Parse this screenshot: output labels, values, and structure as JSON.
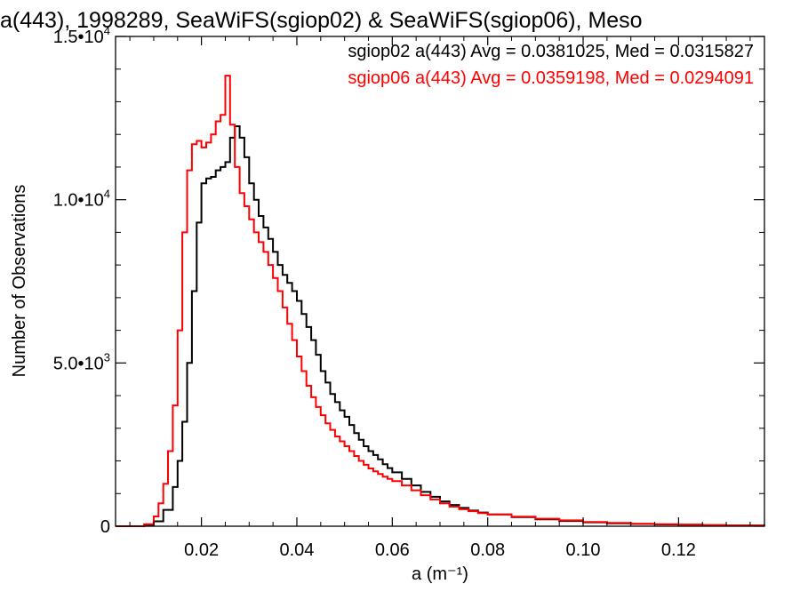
{
  "chart_data": {
    "type": "line",
    "title": "a(443), 1998289, SeaWiFS(sgiop02) & SeaWiFS(sgiop06), Meso",
    "xlabel": "a (m⁻¹)",
    "ylabel": "Number of Observations",
    "xlim": [
      0.002,
      0.138
    ],
    "ylim": [
      0,
      15000
    ],
    "x_ticks": [
      0.02,
      0.04,
      0.06,
      0.08,
      0.1,
      0.12
    ],
    "x_tick_labels": [
      "0.02",
      "0.04",
      "0.06",
      "0.08",
      "0.10",
      "0.12"
    ],
    "y_ticks": [
      0,
      5000,
      10000,
      15000
    ],
    "y_tick_labels": [
      {
        "mant": "0",
        "exp": ""
      },
      {
        "mant": "5.0•10",
        "exp": "3"
      },
      {
        "mant": "1.0•10",
        "exp": "4"
      },
      {
        "mant": "1.5•10",
        "exp": "4"
      }
    ],
    "legend_position": "top-right",
    "grid": false,
    "series": [
      {
        "name": "sgiop02 a(443) Avg = 0.0381025, Med = 0.0315827",
        "color": "#000000",
        "x": [
          0.002,
          0.005,
          0.008,
          0.01,
          0.012,
          0.014,
          0.015,
          0.016,
          0.017,
          0.018,
          0.019,
          0.02,
          0.021,
          0.022,
          0.023,
          0.024,
          0.025,
          0.026,
          0.027,
          0.028,
          0.029,
          0.03,
          0.031,
          0.032,
          0.033,
          0.034,
          0.035,
          0.036,
          0.037,
          0.038,
          0.039,
          0.04,
          0.041,
          0.042,
          0.043,
          0.044,
          0.045,
          0.046,
          0.047,
          0.048,
          0.049,
          0.05,
          0.051,
          0.052,
          0.053,
          0.054,
          0.055,
          0.056,
          0.057,
          0.058,
          0.059,
          0.06,
          0.062,
          0.064,
          0.066,
          0.068,
          0.07,
          0.072,
          0.074,
          0.076,
          0.078,
          0.08,
          0.085,
          0.09,
          0.095,
          0.1,
          0.105,
          0.11,
          0.115,
          0.12,
          0.125,
          0.13,
          0.138
        ],
        "y": [
          0,
          0,
          30,
          150,
          500,
          1200,
          2000,
          3200,
          5000,
          7200,
          9300,
          10500,
          10650,
          10700,
          10900,
          11000,
          11150,
          11900,
          12250,
          11900,
          11300,
          10500,
          10000,
          9500,
          9150,
          8800,
          8400,
          8000,
          7700,
          7450,
          7200,
          6900,
          6500,
          6100,
          5700,
          5250,
          4750,
          4400,
          4050,
          3800,
          3550,
          3350,
          3100,
          2850,
          2650,
          2450,
          2300,
          2180,
          2050,
          1900,
          1780,
          1650,
          1450,
          1250,
          1050,
          900,
          760,
          650,
          560,
          480,
          420,
          360,
          280,
          210,
          160,
          120,
          90,
          70,
          55,
          45,
          35,
          25,
          15
        ]
      },
      {
        "name": "sgiop06 a(443) Avg = 0.0359198, Med = 0.0294091",
        "color": "#ff0000",
        "x": [
          0.002,
          0.005,
          0.008,
          0.01,
          0.011,
          0.012,
          0.013,
          0.014,
          0.015,
          0.016,
          0.017,
          0.018,
          0.019,
          0.02,
          0.021,
          0.022,
          0.023,
          0.024,
          0.025,
          0.026,
          0.027,
          0.028,
          0.029,
          0.03,
          0.031,
          0.032,
          0.033,
          0.034,
          0.035,
          0.036,
          0.037,
          0.038,
          0.039,
          0.04,
          0.041,
          0.042,
          0.043,
          0.044,
          0.045,
          0.046,
          0.047,
          0.048,
          0.049,
          0.05,
          0.051,
          0.052,
          0.053,
          0.054,
          0.055,
          0.056,
          0.057,
          0.058,
          0.059,
          0.06,
          0.062,
          0.064,
          0.066,
          0.068,
          0.07,
          0.072,
          0.074,
          0.076,
          0.078,
          0.08,
          0.085,
          0.09,
          0.095,
          0.1,
          0.105,
          0.11,
          0.115,
          0.12,
          0.125,
          0.13,
          0.138
        ],
        "y": [
          0,
          0,
          60,
          300,
          700,
          1300,
          2300,
          3700,
          6000,
          9000,
          10900,
          11700,
          11800,
          11600,
          11750,
          12000,
          12400,
          12600,
          13800,
          12300,
          11000,
          10200,
          9800,
          9400,
          9000,
          8700,
          8400,
          8000,
          7600,
          7200,
          6700,
          6200,
          5700,
          5200,
          4750,
          4300,
          3950,
          3650,
          3400,
          3150,
          2950,
          2750,
          2600,
          2450,
          2300,
          2150,
          2000,
          1880,
          1770,
          1680,
          1600,
          1520,
          1450,
          1380,
          1250,
          1100,
          950,
          820,
          700,
          600,
          520,
          460,
          400,
          360,
          290,
          230,
          180,
          130,
          100,
          75,
          60,
          45,
          35,
          25,
          15
        ]
      }
    ]
  }
}
